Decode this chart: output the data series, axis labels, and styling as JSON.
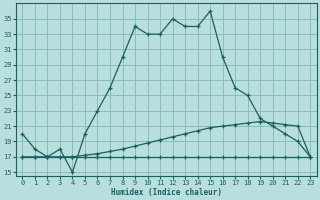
{
  "xlabel": "Humidex (Indice chaleur)",
  "bg_color": "#b8dede",
  "grid_color": "#8bbcbc",
  "line_color": "#1a6060",
  "xlim": [
    -0.5,
    23.5
  ],
  "ylim": [
    14.5,
    37
  ],
  "yticks": [
    15,
    17,
    19,
    21,
    23,
    25,
    27,
    29,
    31,
    33,
    35
  ],
  "xticks": [
    0,
    1,
    2,
    3,
    4,
    5,
    6,
    7,
    8,
    9,
    10,
    11,
    12,
    13,
    14,
    15,
    16,
    17,
    18,
    19,
    20,
    21,
    22,
    23
  ],
  "line1_x": [
    0,
    1,
    2,
    3,
    4,
    5,
    6,
    7,
    8,
    9,
    10,
    11,
    12,
    13,
    14,
    15,
    16,
    17,
    18,
    19,
    20,
    21,
    22,
    23
  ],
  "line1_y": [
    20,
    18,
    17,
    18,
    15,
    20,
    23,
    26,
    30,
    34,
    33,
    33,
    35,
    34,
    34,
    36,
    30,
    26,
    25,
    22,
    21,
    20,
    19,
    17
  ],
  "line2_x": [
    0,
    1,
    2,
    3,
    4,
    5,
    6,
    7,
    8,
    9,
    10,
    11,
    12,
    13,
    14,
    15,
    16,
    17,
    18,
    19,
    20,
    21,
    22,
    23
  ],
  "line2_y": [
    17,
    17,
    17,
    17,
    17,
    17,
    17,
    17,
    17,
    17,
    17,
    17,
    17,
    17,
    17,
    17,
    17,
    17,
    17,
    17,
    17,
    17,
    17,
    17
  ],
  "line3_x": [
    0,
    1,
    2,
    3,
    4,
    5,
    6,
    7,
    8,
    9,
    10,
    11,
    12,
    13,
    14,
    15,
    16,
    17,
    18,
    19,
    20,
    21,
    22,
    23
  ],
  "line3_y": [
    17,
    17,
    17,
    17,
    17,
    17.2,
    17.4,
    17.7,
    18.0,
    18.4,
    18.8,
    19.2,
    19.6,
    20.0,
    20.4,
    20.8,
    21.0,
    21.2,
    21.4,
    21.6,
    21.4,
    21.2,
    21.0,
    17
  ]
}
